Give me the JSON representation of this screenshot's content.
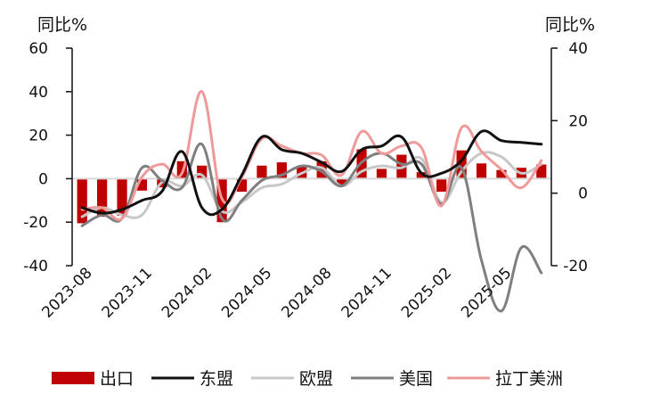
{
  "chart_data": {
    "type": "bar+line",
    "title": "",
    "left_axis": {
      "unit_label": "同比%",
      "ylim": [
        -40,
        60
      ],
      "ticks": [
        -40,
        -20,
        0,
        20,
        40,
        60
      ]
    },
    "right_axis": {
      "unit_label": "同比%",
      "ylim": [
        -20,
        40
      ],
      "ticks": [
        -20,
        0,
        20,
        40
      ]
    },
    "x": [
      "2023-08",
      "2023-09",
      "2023-10",
      "2023-11",
      "2023-12",
      "2024-01",
      "2024-02",
      "2024-03",
      "2024-04",
      "2024-05",
      "2024-06",
      "2024-07",
      "2024-08",
      "2024-09",
      "2024-10",
      "2024-11",
      "2024-12",
      "2025-01",
      "2025-02",
      "2025-03",
      "2025-04",
      "2025-05",
      "2025-06",
      "2025-07"
    ],
    "x_tick_labels": [
      "2023-08",
      "2023-11",
      "2024-02",
      "2024-05",
      "2024-08",
      "2024-11",
      "2025-02",
      "2025-05"
    ],
    "bar_series": {
      "name": "出口",
      "axis": "left",
      "color": "#c00000",
      "values": [
        -20.5,
        -17.5,
        -17.0,
        -5.5,
        -4.0,
        8.0,
        6.0,
        -20.0,
        -6.0,
        6.0,
        7.5,
        5.5,
        8.0,
        -3.5,
        13.5,
        4.5,
        11.0,
        3.0,
        -6.0,
        13.0,
        7.0,
        4.0,
        5.0,
        6.5
      ]
    },
    "line_series": [
      {
        "name": "东盟",
        "axis": "right",
        "color": "#111111",
        "values": [
          -4.0,
          -5.5,
          -4.5,
          -2.0,
          0.5,
          11.5,
          -4.0,
          -4.5,
          5.0,
          15.5,
          12.0,
          11.0,
          8.5,
          6.0,
          12.0,
          13.0,
          15.5,
          5.5,
          5.5,
          9.0,
          17.0,
          14.5,
          14.0,
          13.5
        ]
      },
      {
        "name": "欧盟",
        "axis": "right",
        "color": "#c8c8c8",
        "values": [
          -6.5,
          -4.0,
          -6.0,
          -6.0,
          3.0,
          2.0,
          5.0,
          -5.0,
          -2.5,
          1.5,
          2.5,
          5.5,
          7.0,
          2.0,
          6.0,
          7.5,
          7.0,
          9.5,
          -2.5,
          6.0,
          11.0,
          10.0,
          5.5,
          8.0
        ]
      },
      {
        "name": "美国",
        "axis": "right",
        "color": "#7f7f7f",
        "values": [
          -9.0,
          -6.0,
          -7.0,
          7.0,
          3.5,
          1.5,
          13.5,
          -7.0,
          -2.0,
          3.5,
          5.0,
          7.5,
          6.0,
          2.0,
          8.5,
          11.0,
          8.0,
          8.0,
          -3.0,
          7.0,
          -18.5,
          -32.5,
          -15.0,
          -22.0
        ]
      },
      {
        "name": "拉丁美洲",
        "axis": "right",
        "color": "#ef9a9a",
        "values": [
          -4.5,
          -4.0,
          -7.0,
          4.5,
          8.0,
          5.5,
          28.0,
          -1.5,
          4.5,
          15.0,
          13.0,
          11.0,
          10.5,
          5.0,
          17.0,
          11.0,
          13.0,
          12.5,
          -3.5,
          18.0,
          11.5,
          6.5,
          1.5,
          9.0
        ]
      }
    ],
    "legend": {
      "placement": "bottom",
      "items": [
        {
          "label": "出口",
          "kind": "bar",
          "color": "#c00000"
        },
        {
          "label": "东盟",
          "kind": "line",
          "color": "#111111"
        },
        {
          "label": "欧盟",
          "kind": "line",
          "color": "#c8c8c8"
        },
        {
          "label": "美国",
          "kind": "line",
          "color": "#7f7f7f"
        },
        {
          "label": "拉丁美洲",
          "kind": "line",
          "color": "#ef9a9a"
        }
      ]
    },
    "zero_line_color": "#d9d9d9",
    "grid": false
  }
}
